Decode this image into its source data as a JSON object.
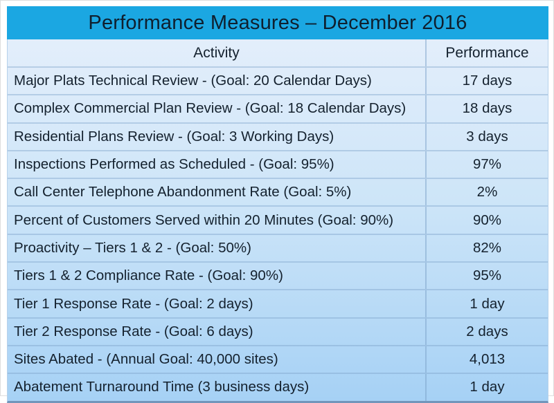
{
  "table": {
    "title": "Performance Measures – December 2016",
    "columns": [
      {
        "label": "Activity"
      },
      {
        "label": "Performance"
      }
    ],
    "rows": [
      {
        "activity": "Major Plats Technical Review - (Goal: 20 Calendar Days)",
        "performance": "17 days"
      },
      {
        "activity": "Complex Commercial Plan Review - (Goal: 18 Calendar Days)",
        "performance": "18 days"
      },
      {
        "activity": "Residential Plans Review - (Goal: 3 Working Days)",
        "performance": "3 days"
      },
      {
        "activity": "Inspections Performed as Scheduled - (Goal: 95%)",
        "performance": "97%"
      },
      {
        "activity": "Call Center Telephone Abandonment Rate (Goal: 5%)",
        "performance": "2%"
      },
      {
        "activity": "Percent of Customers Served within 20 Minutes (Goal: 90%)",
        "performance": "90%"
      },
      {
        "activity": "Proactivity – Tiers 1 & 2 - (Goal: 50%)",
        "performance": "82%"
      },
      {
        "activity": "Tiers 1 & 2 Compliance Rate - (Goal: 90%)",
        "performance": "95%"
      },
      {
        "activity": "Tier 1 Response Rate - (Goal: 2 days)",
        "performance": "1 day"
      },
      {
        "activity": "Tier 2 Response Rate - (Goal: 6 days)",
        "performance": "2 days"
      },
      {
        "activity": "Sites Abated - (Annual Goal: 40,000 sites)",
        "performance": "4,013"
      },
      {
        "activity": "Abatement Turnaround Time (3 business days)",
        "performance": "1 day"
      }
    ]
  },
  "colors": {
    "title_bar_bg": "#1ba7e2",
    "title_text": "#0f1f2e",
    "body_text": "#14212e",
    "gradient_top": "#e3eefb",
    "gradient_bottom": "#a6d1f5",
    "grid_line": "#7aa0c8",
    "bottom_border": "#7296bb"
  }
}
